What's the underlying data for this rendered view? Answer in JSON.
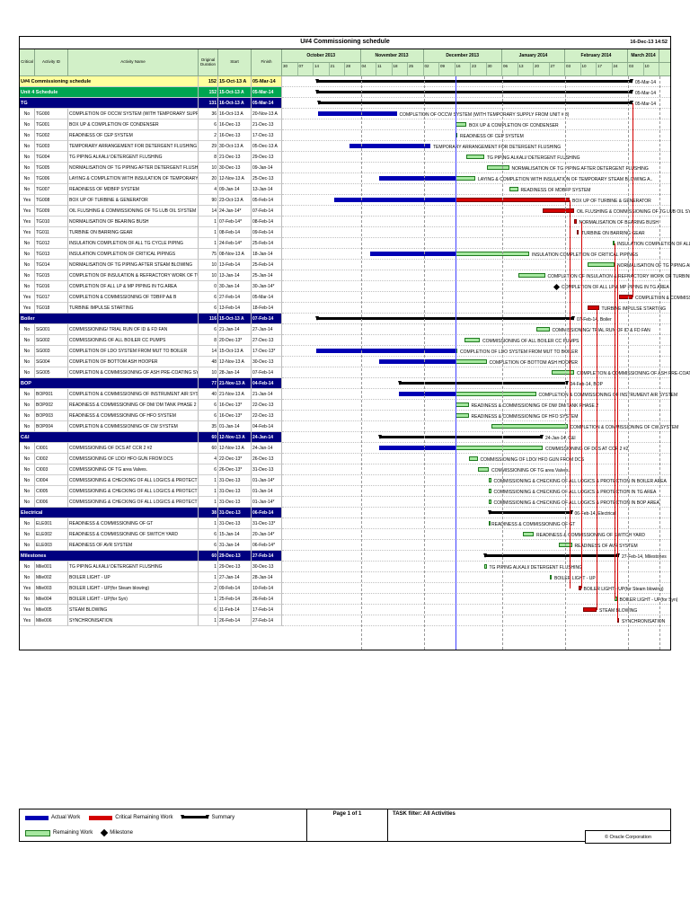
{
  "header": {
    "title": "U#4 Commissioning schedule",
    "datetime": "16-Dec-13 14:52"
  },
  "table": {
    "columns": [
      "Critical",
      "Activity ID",
      "Activity Name",
      "Original Duration",
      "Start",
      "Finish"
    ]
  },
  "chart_data": {
    "type": "gantt",
    "data_date": "16-Dec-13",
    "timeline": {
      "start": "30-Sep-13",
      "months": [
        {
          "label": "October 2013",
          "weeks": [
            "30",
            "07",
            "14",
            "21",
            "28"
          ]
        },
        {
          "label": "November 2013",
          "weeks": [
            "04",
            "11",
            "18",
            "25"
          ]
        },
        {
          "label": "December 2013",
          "weeks": [
            "02",
            "09",
            "16",
            "23",
            "30"
          ]
        },
        {
          "label": "January 2014",
          "weeks": [
            "06",
            "13",
            "20",
            "27"
          ]
        },
        {
          "label": "February 2014",
          "weeks": [
            "03",
            "10",
            "17",
            "24"
          ]
        },
        {
          "label": "March 2014",
          "weeks": [
            "03",
            "10"
          ]
        }
      ]
    },
    "rows": [
      {
        "kind": "title",
        "name": "U#4 Commissioning schedule",
        "dur": "152",
        "start": "15-Oct-13 A",
        "finish": "05-Mar-14",
        "bar_label": "05-Mar-14"
      },
      {
        "kind": "unit",
        "name": "Unit 4 Schedule",
        "dur": "152",
        "start": "15-Oct-13 A",
        "finish": "05-Mar-14",
        "bar_label": "05-Mar-14"
      },
      {
        "kind": "band",
        "name": "TG",
        "dur": "131",
        "start": "16-Oct-13 A",
        "finish": "05-Mar-14",
        "bar_label": "05-Mar-14"
      },
      {
        "kind": "task",
        "critical": "No",
        "id": "TG000",
        "name": "COMPLETION OF OCCW SYSTEM (WITH TEMPORARY SUPPLY FROM UNIT # 3)",
        "dur": "36",
        "start": "16-Oct-13 A",
        "finish": "20-Nov-13 A"
      },
      {
        "kind": "task",
        "critical": "No",
        "id": "TG001",
        "name": "BOX UP & COMPLETION OF CONDENSER",
        "dur": "6",
        "start": "16-Dec-13",
        "finish": "21-Dec-13"
      },
      {
        "kind": "task",
        "critical": "No",
        "id": "TG002",
        "name": "READINESS OF CEP SYSTEM",
        "dur": "2",
        "start": "16-Dec-13",
        "finish": "17-Dec-13"
      },
      {
        "kind": "task",
        "critical": "No",
        "id": "TG003",
        "name": "TEMPORARY ARRANGEMENT FOR DETERGENT FLUSHING",
        "dur": "29",
        "start": "30-Oct-13 A",
        "finish": "05-Dec-13 A"
      },
      {
        "kind": "task",
        "critical": "No",
        "id": "TG004",
        "name": "TG PIPING ALKALI/ DETERGENT FLUSHING",
        "dur": "8",
        "start": "21-Dec-13",
        "finish": "29-Dec-13"
      },
      {
        "kind": "task",
        "critical": "No",
        "id": "TG005",
        "name": "NORMALISATION OF TG PIPING AFTER DETERGENT FLUSHING",
        "dur": "10",
        "start": "30-Dec-13",
        "finish": "09-Jan-14"
      },
      {
        "kind": "task",
        "critical": "No",
        "id": "TG006",
        "name": "LAYING & COMPLETION WITH INSULATION OF TEMPORARY STEAM BLOWING A..",
        "dur": "20",
        "start": "12-Nov-13 A",
        "finish": "25-Dec-13"
      },
      {
        "kind": "task",
        "critical": "No",
        "id": "TG007",
        "name": "READINESS OF MDBFP SYSTEM",
        "dur": "4",
        "start": "09-Jan-14",
        "finish": "13-Jan-14"
      },
      {
        "kind": "task",
        "critical": "Yes",
        "id": "TG008",
        "name": "BOX UP OF TURBINE & GENERATOR",
        "dur": "90",
        "start": "23-Oct-13 A",
        "finish": "05-Feb-14"
      },
      {
        "kind": "task",
        "critical": "Yes",
        "id": "TG009",
        "name": "OIL FLUSHING & COMMISSIONING OF TG LUB OIL SYSTEM",
        "dur": "14",
        "start": "24-Jan-14*",
        "finish": "07-Feb-14"
      },
      {
        "kind": "task",
        "critical": "Yes",
        "id": "TG010",
        "name": "NORMALISATION OF BEARING BUSH",
        "dur": "1",
        "start": "07-Feb-14*",
        "finish": "08-Feb-14"
      },
      {
        "kind": "task",
        "critical": "Yes",
        "id": "TG011",
        "name": "TURBINE ON BARRING GEAR",
        "dur": "1",
        "start": "08-Feb-14",
        "finish": "09-Feb-14"
      },
      {
        "kind": "task",
        "critical": "No",
        "id": "TG012",
        "name": "INSULATION COMPLETION OF ALL TG CYCLE PIPING",
        "dur": "1",
        "start": "24-Feb-14*",
        "finish": "25-Feb-14"
      },
      {
        "kind": "task",
        "critical": "No",
        "id": "TG013",
        "name": "INSULATION COMPLETION OF CRITICAL PIPINGS",
        "dur": "75",
        "start": "08-Nov-13 A",
        "finish": "18-Jan-14"
      },
      {
        "kind": "task",
        "critical": "No",
        "id": "TG014",
        "name": "NORMALISATION OF TG PIPING AFTER STEAM BLOWING",
        "dur": "10",
        "start": "13-Feb-14",
        "finish": "25-Feb-14"
      },
      {
        "kind": "task",
        "critical": "No",
        "id": "TG015",
        "name": "COMPLETION OF INSULATION & REFRACTORY WORK OF TURBINE ( HP/ LP)",
        "dur": "10",
        "start": "13-Jan-14",
        "finish": "25-Jan-14"
      },
      {
        "kind": "task",
        "critical": "No",
        "id": "TG016",
        "name": "COMPLETION OF ALL LP & MP PIPING IN TG AREA",
        "dur": "0",
        "start": "30-Jan-14",
        "finish": "30-Jan-14*"
      },
      {
        "kind": "task",
        "critical": "Yes",
        "id": "TG017",
        "name": "COMPLETION & COMMISSIONING OF TDBFP A& B",
        "dur": "6",
        "start": "27-Feb-14",
        "finish": "05-Mar-14"
      },
      {
        "kind": "task",
        "critical": "Yes",
        "id": "TG018",
        "name": "TURBINE IMPULSE STARTING",
        "dur": "6",
        "start": "13-Feb-14",
        "finish": "18-Feb-14"
      },
      {
        "kind": "band",
        "name": "Boiler",
        "dur": "116",
        "start": "15-Oct-13 A",
        "finish": "07-Feb-14",
        "bar_label": "07-Feb-14, Boiler"
      },
      {
        "kind": "task",
        "critical": "No",
        "id": "SG001",
        "name": "COMMISSIONING/ TRIAL RUN OF ID & FD FAN",
        "dur": "6",
        "start": "21-Jan-14",
        "finish": "27-Jan-14"
      },
      {
        "kind": "task",
        "critical": "No",
        "id": "SG002",
        "name": "COMMISSIONING OF ALL BOILER CC PUMPS",
        "dur": "8",
        "start": "20-Dec-13*",
        "finish": "27-Dec-13"
      },
      {
        "kind": "task",
        "critical": "No",
        "id": "SG003",
        "name": "COMPLETION OF LDO SYSTEM FROM MUT TO BOILER",
        "dur": "14",
        "start": "15-Oct-13 A",
        "finish": "17-Dec-13*"
      },
      {
        "kind": "task",
        "critical": "No",
        "id": "SG004",
        "name": "COMPLETION OF BOTTOM ASH HOOPER",
        "dur": "48",
        "start": "12-Nov-13 A",
        "finish": "30-Dec-13"
      },
      {
        "kind": "task",
        "critical": "No",
        "id": "SG005",
        "name": "COMPLETION & COMMISSIONING OF ASH PRE-COATING SYSTEM OF ESP BAG FIL..",
        "dur": "10",
        "start": "28-Jan-14",
        "finish": "07-Feb-14"
      },
      {
        "kind": "band",
        "name": "BOP",
        "dur": "77",
        "start": "21-Nov-13 A",
        "finish": "04-Feb-14",
        "bar_label": "04-Feb-14, BOP"
      },
      {
        "kind": "task",
        "critical": "No",
        "id": "BOP001",
        "name": "COMPLETION & COMMISSIONING OF INSTRUMENT AIR SYSTEM",
        "dur": "40",
        "start": "21-Nov-13 A",
        "finish": "21-Jan-14"
      },
      {
        "kind": "task",
        "critical": "No",
        "id": "BOP002",
        "name": "READINESS & COMMISSIONING OF DM/ DM TANK PHASE 2",
        "dur": "6",
        "start": "16-Dec-13*",
        "finish": "22-Dec-13"
      },
      {
        "kind": "task",
        "critical": "No",
        "id": "BOP003",
        "name": "READINESS & COMMISSIONING OF HFO SYSTEM",
        "dur": "6",
        "start": "16-Dec-13*",
        "finish": "22-Dec-13"
      },
      {
        "kind": "task",
        "critical": "No",
        "id": "BOP004",
        "name": "COMPLETION & COMMISSIONING OF CW SYSTEM",
        "dur": "35",
        "start": "01-Jan-14",
        "finish": "04-Feb-14"
      },
      {
        "kind": "band",
        "name": "C&I",
        "dur": "60",
        "start": "12-Nov-13 A",
        "finish": "24-Jan-14",
        "bar_label": "24-Jan-14, C&I"
      },
      {
        "kind": "task",
        "critical": "No",
        "id": "CI001",
        "name": "COMMISSIONING OF DCS AT CCR 2 #2",
        "dur": "60",
        "start": "12-Nov-13 A",
        "finish": "24-Jan-14"
      },
      {
        "kind": "task",
        "critical": "No",
        "id": "CI002",
        "name": "COMMISSIONING OF LDO/ HFO GUN FROM DCS",
        "dur": "4",
        "start": "22-Dec-13*",
        "finish": "26-Dec-13"
      },
      {
        "kind": "task",
        "critical": "No",
        "id": "CI003",
        "name": "COMMISSIONING OF TG area Valves.",
        "dur": "6",
        "start": "26-Dec-13*",
        "finish": "31-Dec-13"
      },
      {
        "kind": "task",
        "critical": "No",
        "id": "CI004",
        "name": "COMMISSIONING & CHECKING OF ALL LOGICS & PROTECTION IN BOILER AREA",
        "dur": "1",
        "start": "31-Dec-13",
        "finish": "01-Jan-14*"
      },
      {
        "kind": "task",
        "critical": "No",
        "id": "CI005",
        "name": "COMMISSIONING & CHECKING OF ALL LOGICS & PROTECTION IN TG AREA",
        "dur": "1",
        "start": "31-Dec-13",
        "finish": "01-Jan-14"
      },
      {
        "kind": "task",
        "critical": "No",
        "id": "CI006",
        "name": "COMMISSIONING & CHECKING OF ALL LOGICS & PROTECTION IN BOP AREA",
        "dur": "1",
        "start": "31-Dec-13",
        "finish": "01-Jan-14*"
      },
      {
        "kind": "band",
        "name": "Electrical",
        "dur": "38",
        "start": "31-Dec-13",
        "finish": "06-Feb-14",
        "bar_label": "06-Feb-14, Electrical"
      },
      {
        "kind": "task",
        "critical": "No",
        "id": "ELE001",
        "name": "READINESS & COMMISSIONING OF GT",
        "dur": "1",
        "start": "31-Dec-13",
        "finish": "31-Dec-13*"
      },
      {
        "kind": "task",
        "critical": "No",
        "id": "ELE002",
        "name": "READINESS & COMMISSIONING OF SWITCH YARD",
        "dur": "6",
        "start": "15-Jan-14",
        "finish": "20-Jan-14*"
      },
      {
        "kind": "task",
        "critical": "No",
        "id": "ELE003",
        "name": "READINESS OF AVR SYSTEM",
        "dur": "6",
        "start": "31-Jan-14",
        "finish": "06-Feb-14*"
      },
      {
        "kind": "band",
        "name": "Milestones",
        "dur": "60",
        "start": "29-Dec-13",
        "finish": "27-Feb-14",
        "bar_label": "27-Feb-14, Milestones"
      },
      {
        "kind": "task",
        "critical": "No",
        "id": "Mile001",
        "name": "TG PIPING ALKALI/ DETERGENT FLUSHING",
        "dur": "1",
        "start": "29-Dec-13",
        "finish": "30-Dec-13"
      },
      {
        "kind": "task",
        "critical": "No",
        "id": "Mile002",
        "name": "BOILER LIGHT - UP",
        "dur": "1",
        "start": "27-Jan-14",
        "finish": "28-Jan-14"
      },
      {
        "kind": "task",
        "critical": "Yes",
        "id": "Mile003",
        "name": "BOILER LIGHT - UP(for Steam blowing)",
        "dur": "2",
        "start": "09-Feb-14",
        "finish": "10-Feb-14"
      },
      {
        "kind": "task",
        "critical": "No",
        "id": "Mile004",
        "name": "BOILER LIGHT - UP(for Syn)",
        "dur": "1",
        "start": "25-Feb-14",
        "finish": "26-Feb-14"
      },
      {
        "kind": "task",
        "critical": "Yes",
        "id": "Mile005",
        "name": "STEAM BLOWING",
        "dur": "6",
        "start": "11-Feb-14",
        "finish": "17-Feb-14"
      },
      {
        "kind": "task",
        "critical": "Yes",
        "id": "Mile006",
        "name": "SYNCHRONISATION",
        "dur": "1",
        "start": "26-Feb-14",
        "finish": "27-Feb-14"
      }
    ],
    "critical_links": [
      {
        "date": "05-Feb-14",
        "from": 11,
        "to": 47
      },
      {
        "date": "10-Feb-14",
        "from": 13,
        "to": 47
      },
      {
        "date": "17-Feb-14",
        "from": 21,
        "to": 49
      },
      {
        "date": "25-Feb-14",
        "from": 15,
        "to": 48
      },
      {
        "date": "26-Feb-14",
        "from": 17,
        "to": 50
      },
      {
        "date": "05-Mar-14",
        "from": 2,
        "to": 20
      }
    ]
  },
  "legend": {
    "rows": [
      [
        {
          "swatch": "actual",
          "label": "Actual Work"
        },
        {
          "swatch": "critical",
          "label": "Critical Remaining Work"
        },
        {
          "swatch": "summary",
          "label": "Summary"
        }
      ],
      [
        {
          "swatch": "remaining",
          "label": "Remaining Work"
        },
        {
          "swatch": "milestone",
          "label": "Milestone"
        }
      ]
    ]
  },
  "footer": {
    "page": "Page 1 of 1",
    "filter": "TASK filter: All Activities",
    "copyright": "© Oracle Corporation"
  },
  "colors": {
    "actual": "#0000b4",
    "remaining": "#a6e8a0",
    "remaining_border": "#1f7a1f",
    "critical": "#d40000",
    "band_bg": "#000080",
    "unit_bg": "#00a651",
    "title_bg": "#ffff9e",
    "header_bg": "#d2f0c8",
    "data_date_line": "#4040ff"
  }
}
